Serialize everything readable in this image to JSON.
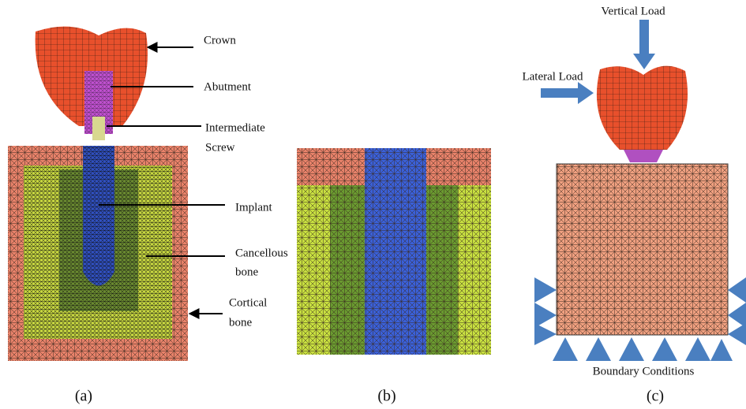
{
  "panel_a": {
    "labels": [
      [
        "Crown"
      ],
      [
        "Abutment"
      ],
      [
        "Intermediate",
        "Screw"
      ],
      [
        "Implant"
      ],
      [
        "Cancellous",
        "bone"
      ],
      [
        "Cortical",
        "bone"
      ]
    ],
    "caption": "(a)"
  },
  "panel_b": {
    "caption": "(b)"
  },
  "panel_c": {
    "vertical_load": "Vertical Load",
    "lateral_load": "Lateral Load",
    "boundary_conditions": "Boundary Conditions",
    "caption": "(c)"
  }
}
